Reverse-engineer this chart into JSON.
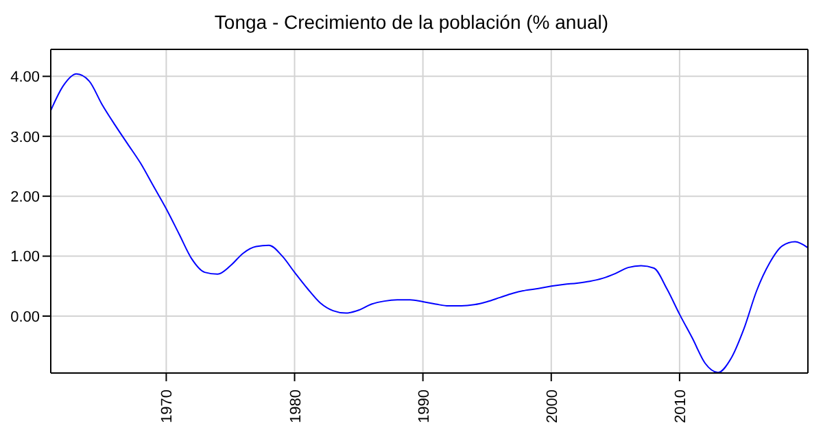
{
  "chart_data": {
    "type": "line",
    "title": "Tonga - Crecimiento de la población (% anual)",
    "x": [
      1961,
      1962,
      1963,
      1964,
      1965,
      1966,
      1967,
      1968,
      1969,
      1970,
      1971,
      1972,
      1973,
      1974,
      1975,
      1976,
      1977,
      1978,
      1979,
      1980,
      1981,
      1982,
      1983,
      1984,
      1985,
      1986,
      1987,
      1988,
      1989,
      1990,
      1991,
      1992,
      1993,
      1994,
      1995,
      1996,
      1997,
      1998,
      1999,
      2000,
      2001,
      2002,
      2003,
      2004,
      2005,
      2006,
      2007,
      2008,
      2009,
      2010,
      2011,
      2012,
      2013,
      2014,
      2015,
      2016,
      2017,
      2018,
      2019,
      2020
    ],
    "series": [
      {
        "color": "#0000ff",
        "values": [
          3.43,
          3.85,
          4.04,
          3.92,
          3.53,
          3.19,
          2.87,
          2.55,
          2.17,
          1.79,
          1.37,
          0.95,
          0.73,
          0.7,
          0.84,
          1.05,
          1.16,
          1.18,
          1.01,
          0.73,
          0.46,
          0.22,
          0.09,
          0.05,
          0.1,
          0.2,
          0.25,
          0.27,
          0.27,
          0.24,
          0.2,
          0.17,
          0.17,
          0.19,
          0.24,
          0.31,
          0.38,
          0.43,
          0.46,
          0.5,
          0.53,
          0.55,
          0.58,
          0.63,
          0.71,
          0.81,
          0.84,
          0.8,
          0.46,
          0.03,
          -0.37,
          -0.79,
          -0.94,
          -0.71,
          -0.22,
          0.42,
          0.88,
          1.17,
          1.24,
          1.14
        ]
      }
    ],
    "xlim": [
      1961,
      2020
    ],
    "xticks": [
      1970,
      1980,
      1990,
      2000,
      2010
    ],
    "ylim": [
      -0.95,
      4.45
    ],
    "yticks": [
      {
        "value": 0,
        "label": "0.00"
      },
      {
        "value": 1,
        "label": "1.00"
      },
      {
        "value": 2,
        "label": "2.00"
      },
      {
        "value": 3,
        "label": "3.00"
      },
      {
        "value": 4,
        "label": "4.00"
      }
    ],
    "grid": true,
    "marker": "none",
    "line_style": "solid"
  }
}
